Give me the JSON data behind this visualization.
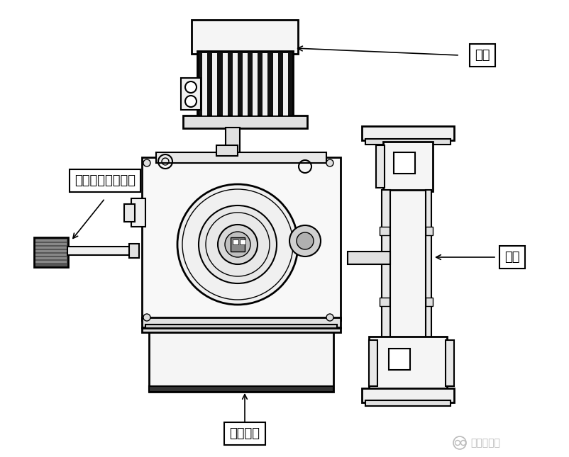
{
  "bg_color": "#ffffff",
  "fig_width": 8.02,
  "fig_height": 6.45,
  "dpi": 100,
  "labels": {
    "motor": "电机",
    "pump_head": "泵头",
    "stroke_knob": "冲程长度调节旋钮",
    "mechanical": "机械装置",
    "watermark": "煤化工联盟"
  },
  "label_box_color": "#ffffff",
  "label_box_edgecolor": "#000000",
  "label_fontsize": 13,
  "watermark_fontsize": 10,
  "watermark_color": "#bbbbbb",
  "line_color": "#000000"
}
